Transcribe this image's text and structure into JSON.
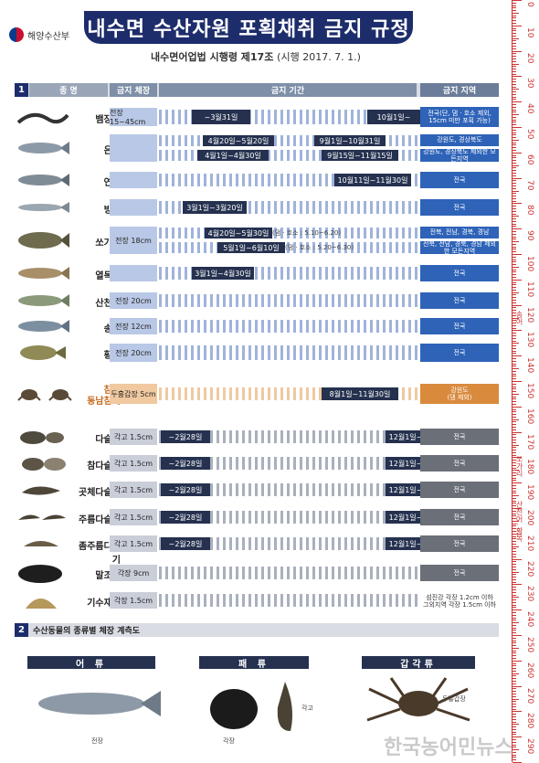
{
  "ministry": "해양수산부",
  "title": "내수면 수산자원 포획채취 금지 규정",
  "subtitle_main": "내수면어업법 시행령 제17조",
  "subtitle_effect": "(시행 2017. 7. 1.)",
  "section1": {
    "num": "1",
    "col_name": "종   명",
    "col_size": "금지 체장",
    "col_period": "금지 기간",
    "col_region": "금지 지역"
  },
  "rows": [
    {
      "name": "뱀장어",
      "size": "전장 15~45cm",
      "p1": "~3월31일",
      "p2": "10월1일~",
      "region": "전국(단, 댐ㆍ호소 제외, 15cm 미만 포획 가능)"
    },
    {
      "name": "은어",
      "p1": "4월20일~5월20일",
      "p2": "9월1일~10월31일",
      "p3": "4월1일~4월30일",
      "p4": "9월15일~11월15일",
      "region": "강원도, 경상북도",
      "region2": "강원도, 경상북도 제외한 모든지역"
    },
    {
      "name": "연어",
      "p1": "10월11일~11월30일",
      "region": "전국"
    },
    {
      "name": "빙어",
      "p1": "3월1일~3월20일",
      "region": "전국"
    },
    {
      "name": "쏘가리",
      "size": "전장 18cm",
      "p1": "4월20일~5월30일",
      "p1n": "(댐ㆍ호소 : 5.10~6.20)",
      "p2": "5월1일~6월10일",
      "p2n": "(댐ㆍ호소 : 5.20~6.30)",
      "region": "전북, 전남, 경북, 경남",
      "region2": "전북, 전남, 경북, 경남 제외한 모든지역"
    },
    {
      "name": "열목어",
      "p1": "3월1일~4월30일",
      "region": "전국"
    },
    {
      "name": "산천어",
      "size": "전장 20cm",
      "region": "전국"
    },
    {
      "name": "송어",
      "size": "전장 12cm",
      "region": "전국"
    },
    {
      "name": "황복",
      "size": "전장 20cm",
      "region": "전국"
    },
    {
      "name": "참게",
      "name2": "동남참게",
      "size": "두흉갑장 5cm",
      "p1": "8월1일~11월30일",
      "region": "강원도",
      "region2": "(댐 제외)"
    },
    {
      "name": "다슬기",
      "size": "각고 1.5cm",
      "p1": "~2월28일",
      "p2": "12월1일~",
      "region": "전국"
    },
    {
      "name": "참다슬기",
      "size": "각고 1.5cm",
      "p1": "~2월28일",
      "p2": "12월1일~",
      "region": "전국"
    },
    {
      "name": "곳체다슬기",
      "size": "각고 1.5cm",
      "p1": "~2월28일",
      "p2": "12월1일~",
      "region": "전국"
    },
    {
      "name": "주름다슬기",
      "size": "각고 1.5cm",
      "p1": "~2월28일",
      "p2": "12월1일~",
      "region": "전국"
    },
    {
      "name": "좀주름다슬기",
      "size": "각고 1.5cm",
      "p1": "~2월28일",
      "p2": "12월1일~",
      "region": "전국"
    },
    {
      "name": "말조개",
      "size": "각장 9cm",
      "region": "전국"
    },
    {
      "name": "기수재첩",
      "size": "각장 1.5cm",
      "region": "섬진강 각장 1.2cm 이하",
      "region2": "그외지역 각장 1.5cm 이하"
    }
  ],
  "section2": {
    "num": "2",
    "title": "수산동물의 종류별 체장 계측도",
    "cat1": "어 류",
    "cat2": "패 류",
    "cat3": "갑각류",
    "cap_fish": "전장",
    "cap_shell1": "각장",
    "cap_shell2": "각고",
    "cap_crab": "두흉갑장"
  },
  "ruler": {
    "labels": [
      "0",
      "10",
      "20",
      "30",
      "40",
      "50",
      "60",
      "70",
      "80",
      "90",
      "100",
      "110",
      "120",
      "130",
      "140",
      "150",
      "160",
      "170",
      "180",
      "190",
      "200",
      "210",
      "220",
      "230",
      "240",
      "250",
      "260",
      "270",
      "280",
      "290"
    ],
    "v1": "송어",
    "v2": "쏘가리",
    "v3": "산천어, 황복"
  },
  "watermark": "한국농어민뉴스",
  "colors": {
    "navy": "#1d2d6b",
    "period": "#25314f",
    "region": "#2e63b8",
    "crab": "#d98a3d"
  }
}
